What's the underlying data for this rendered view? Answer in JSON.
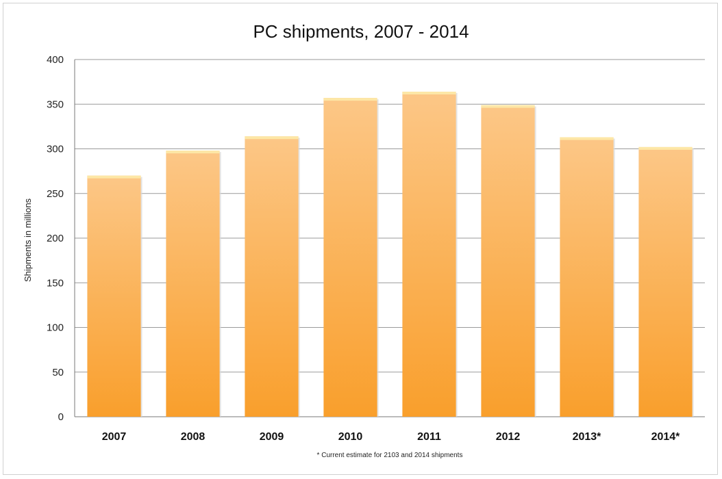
{
  "chart_data": {
    "type": "bar",
    "title": "PC shipments, 2007 - 2014",
    "xlabel": "",
    "ylabel": "Shipments in millions",
    "categories": [
      "2007",
      "2008",
      "2009",
      "2010",
      "2011",
      "2012",
      "2013*",
      "2014*"
    ],
    "values": [
      270,
      298,
      314,
      357,
      364,
      349,
      313,
      302
    ],
    "ylim": [
      0,
      400
    ],
    "yticks": [
      0,
      50,
      100,
      150,
      200,
      250,
      300,
      350,
      400
    ],
    "grid": true,
    "legend": "none",
    "footnote": "* Current estimate for 2103 and 2014 shipments",
    "colors": {
      "bar_top": "#fcc787",
      "bar_bottom": "#f99f2c",
      "bar_cap": "#fde7a6"
    }
  }
}
